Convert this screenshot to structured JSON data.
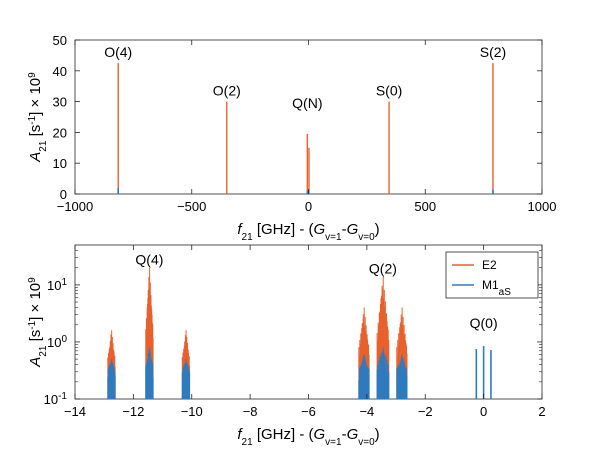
{
  "chart_data": [
    {
      "type": "bar",
      "panel": "top",
      "xlabel": "f_21 [GHz] - (G_{v=1}-G_{v=0})",
      "ylabel": "A_21 [s^-1] × 10^9",
      "xlim": [
        -1000,
        1000
      ],
      "ylim": [
        0,
        50
      ],
      "xticks": [
        -1000,
        -500,
        0,
        500,
        1000
      ],
      "yticks": [
        0,
        10,
        20,
        30,
        40,
        50
      ],
      "yscale": "linear",
      "grid": false,
      "colors": {
        "E2": "#e8612c",
        "M1aS": "#2e7bbf"
      },
      "series": [
        {
          "name": "E2",
          "x": [
            -815,
            -350,
            -5,
            2,
            345,
            790
          ],
          "values": [
            42.5,
            30,
            19.5,
            15,
            30,
            42.5
          ]
        },
        {
          "name": "M1aS",
          "x": [
            -815,
            -5,
            0,
            790
          ],
          "values": [
            2,
            1,
            1.2,
            1.5
          ]
        }
      ],
      "annotations": [
        {
          "text": "O(4)",
          "x": -815
        },
        {
          "text": "O(2)",
          "x": -350
        },
        {
          "text": "Q(N)",
          "x": -5
        },
        {
          "text": "S(0)",
          "x": 345
        },
        {
          "text": "S(2)",
          "x": 790
        }
      ]
    },
    {
      "type": "bar",
      "panel": "bottom",
      "xlabel": "f_21 [GHz] - (G_{v=1}-G_{v=0})",
      "ylabel": "A_21 [s^-1] × 10^9",
      "xlim": [
        -14,
        2
      ],
      "ylim": [
        0.1,
        50
      ],
      "xticks": [
        -14,
        -12,
        -10,
        -8,
        -6,
        -4,
        -2,
        0,
        2
      ],
      "yticks": [
        0.1,
        1,
        10
      ],
      "yscale": "log",
      "grid": false,
      "legend": "top-right",
      "colors": {
        "E2": "#e8612c",
        "M1aS": "#2e7bbf"
      },
      "series": [
        {
          "name": "E2",
          "clusters": [
            {
              "center": -12.75,
              "width": 0.25,
              "peak": 1.6
            },
            {
              "center": -11.45,
              "width": 0.25,
              "peak": 20
            },
            {
              "center": -10.2,
              "width": 0.25,
              "peak": 1.6
            },
            {
              "center": -4.1,
              "width": 0.35,
              "peak": 4
            },
            {
              "center": -3.45,
              "width": 0.4,
              "peak": 14
            },
            {
              "center": -2.8,
              "width": 0.35,
              "peak": 4
            }
          ]
        },
        {
          "name": "M1aS",
          "clusters": [
            {
              "center": -12.75,
              "width": 0.25,
              "peak": 0.5
            },
            {
              "center": -11.45,
              "width": 0.25,
              "peak": 0.8
            },
            {
              "center": -10.2,
              "width": 0.25,
              "peak": 0.5
            },
            {
              "center": -4.1,
              "width": 0.35,
              "peak": 0.6
            },
            {
              "center": -3.45,
              "width": 0.4,
              "peak": 0.8
            },
            {
              "center": -2.8,
              "width": 0.35,
              "peak": 0.6
            }
          ],
          "lines": [
            {
              "x": -0.25,
              "value": 0.75
            },
            {
              "x": 0,
              "value": 0.85
            },
            {
              "x": 0.25,
              "value": 0.72
            }
          ]
        }
      ],
      "annotations": [
        {
          "text": "Q(4)",
          "x": -11.45
        },
        {
          "text": "Q(2)",
          "x": -3.45
        },
        {
          "text": "Q(0)",
          "x": 0
        }
      ]
    }
  ]
}
